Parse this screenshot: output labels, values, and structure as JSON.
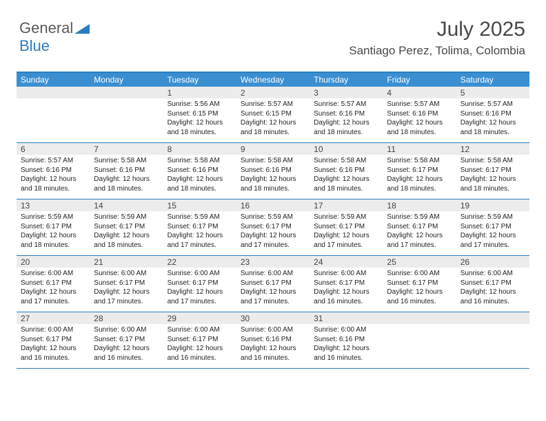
{
  "brand": {
    "part1": "General",
    "part2": "Blue",
    "logo_color": "#2a7ebf"
  },
  "header": {
    "month": "July 2025",
    "location": "Santiago Perez, Tolima, Colombia"
  },
  "colors": {
    "header_bar": "#3b8fd1",
    "border": "#2a7ebf",
    "daynum_bg": "#ececec",
    "text": "#222222",
    "title_text": "#484848"
  },
  "daynames": [
    "Sunday",
    "Monday",
    "Tuesday",
    "Wednesday",
    "Thursday",
    "Friday",
    "Saturday"
  ],
  "weeks": [
    [
      null,
      null,
      {
        "n": "1",
        "sr": "5:56 AM",
        "ss": "6:15 PM",
        "dl": "12 hours and 18 minutes."
      },
      {
        "n": "2",
        "sr": "5:57 AM",
        "ss": "6:15 PM",
        "dl": "12 hours and 18 minutes."
      },
      {
        "n": "3",
        "sr": "5:57 AM",
        "ss": "6:16 PM",
        "dl": "12 hours and 18 minutes."
      },
      {
        "n": "4",
        "sr": "5:57 AM",
        "ss": "6:16 PM",
        "dl": "12 hours and 18 minutes."
      },
      {
        "n": "5",
        "sr": "5:57 AM",
        "ss": "6:16 PM",
        "dl": "12 hours and 18 minutes."
      }
    ],
    [
      {
        "n": "6",
        "sr": "5:57 AM",
        "ss": "6:16 PM",
        "dl": "12 hours and 18 minutes."
      },
      {
        "n": "7",
        "sr": "5:58 AM",
        "ss": "6:16 PM",
        "dl": "12 hours and 18 minutes."
      },
      {
        "n": "8",
        "sr": "5:58 AM",
        "ss": "6:16 PM",
        "dl": "12 hours and 18 minutes."
      },
      {
        "n": "9",
        "sr": "5:58 AM",
        "ss": "6:16 PM",
        "dl": "12 hours and 18 minutes."
      },
      {
        "n": "10",
        "sr": "5:58 AM",
        "ss": "6:16 PM",
        "dl": "12 hours and 18 minutes."
      },
      {
        "n": "11",
        "sr": "5:58 AM",
        "ss": "6:17 PM",
        "dl": "12 hours and 18 minutes."
      },
      {
        "n": "12",
        "sr": "5:58 AM",
        "ss": "6:17 PM",
        "dl": "12 hours and 18 minutes."
      }
    ],
    [
      {
        "n": "13",
        "sr": "5:59 AM",
        "ss": "6:17 PM",
        "dl": "12 hours and 18 minutes."
      },
      {
        "n": "14",
        "sr": "5:59 AM",
        "ss": "6:17 PM",
        "dl": "12 hours and 18 minutes."
      },
      {
        "n": "15",
        "sr": "5:59 AM",
        "ss": "6:17 PM",
        "dl": "12 hours and 17 minutes."
      },
      {
        "n": "16",
        "sr": "5:59 AM",
        "ss": "6:17 PM",
        "dl": "12 hours and 17 minutes."
      },
      {
        "n": "17",
        "sr": "5:59 AM",
        "ss": "6:17 PM",
        "dl": "12 hours and 17 minutes."
      },
      {
        "n": "18",
        "sr": "5:59 AM",
        "ss": "6:17 PM",
        "dl": "12 hours and 17 minutes."
      },
      {
        "n": "19",
        "sr": "5:59 AM",
        "ss": "6:17 PM",
        "dl": "12 hours and 17 minutes."
      }
    ],
    [
      {
        "n": "20",
        "sr": "6:00 AM",
        "ss": "6:17 PM",
        "dl": "12 hours and 17 minutes."
      },
      {
        "n": "21",
        "sr": "6:00 AM",
        "ss": "6:17 PM",
        "dl": "12 hours and 17 minutes."
      },
      {
        "n": "22",
        "sr": "6:00 AM",
        "ss": "6:17 PM",
        "dl": "12 hours and 17 minutes."
      },
      {
        "n": "23",
        "sr": "6:00 AM",
        "ss": "6:17 PM",
        "dl": "12 hours and 17 minutes."
      },
      {
        "n": "24",
        "sr": "6:00 AM",
        "ss": "6:17 PM",
        "dl": "12 hours and 16 minutes."
      },
      {
        "n": "25",
        "sr": "6:00 AM",
        "ss": "6:17 PM",
        "dl": "12 hours and 16 minutes."
      },
      {
        "n": "26",
        "sr": "6:00 AM",
        "ss": "6:17 PM",
        "dl": "12 hours and 16 minutes."
      }
    ],
    [
      {
        "n": "27",
        "sr": "6:00 AM",
        "ss": "6:17 PM",
        "dl": "12 hours and 16 minutes."
      },
      {
        "n": "28",
        "sr": "6:00 AM",
        "ss": "6:17 PM",
        "dl": "12 hours and 16 minutes."
      },
      {
        "n": "29",
        "sr": "6:00 AM",
        "ss": "6:17 PM",
        "dl": "12 hours and 16 minutes."
      },
      {
        "n": "30",
        "sr": "6:00 AM",
        "ss": "6:16 PM",
        "dl": "12 hours and 16 minutes."
      },
      {
        "n": "31",
        "sr": "6:00 AM",
        "ss": "6:16 PM",
        "dl": "12 hours and 16 minutes."
      },
      null,
      null
    ]
  ],
  "labels": {
    "sunrise": "Sunrise:",
    "sunset": "Sunset:",
    "daylight": "Daylight:"
  }
}
